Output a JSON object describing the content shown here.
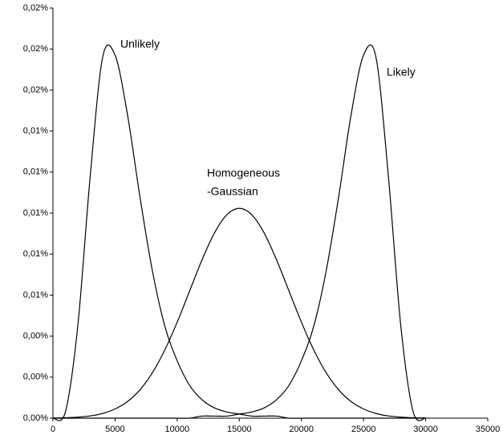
{
  "chart_data": {
    "type": "line",
    "x": [
      0,
      1000,
      2000,
      3000,
      4000,
      5000,
      6000,
      7000,
      8000,
      9000,
      10000,
      11000,
      12000,
      13000,
      14000,
      15000,
      16000,
      17000,
      18000,
      19000,
      20000,
      21000,
      22000,
      23000,
      24000,
      25000,
      26000,
      27000,
      28000,
      29000,
      30000
    ],
    "series": [
      {
        "color": "#000000",
        "values": [
          0,
          0.0003,
          0.0045,
          0.0118,
          0.0176,
          0.0177,
          0.0148,
          0.0108,
          0.0072,
          0.0045,
          0.0028,
          0.0016,
          0.0009,
          0.0005,
          0.0003,
          0.0002,
          0.0001,
          0.0001,
          0.0001,
          0,
          0,
          0,
          0,
          0,
          0,
          0,
          0,
          0,
          0,
          0,
          0
        ]
      },
      {
        "color": "#000000",
        "values": [
          0,
          0,
          0,
          0,
          0,
          0,
          0,
          0,
          0,
          0,
          0,
          0,
          0.0001,
          0.0001,
          0.0001,
          0.0002,
          0.0003,
          0.0005,
          0.0009,
          0.0016,
          0.0028,
          0.0045,
          0.0072,
          0.0108,
          0.0148,
          0.0177,
          0.0176,
          0.0118,
          0.0045,
          0.0003,
          0
        ]
      },
      {
        "color": "#000000",
        "values": [
          1e-05,
          2e-05,
          5e-05,
          0.00011,
          0.00023,
          0.00045,
          0.00081,
          0.00138,
          0.00221,
          0.00332,
          0.00468,
          0.0062,
          0.00772,
          0.00903,
          0.00992,
          0.01023,
          0.00992,
          0.00903,
          0.00772,
          0.0062,
          0.00468,
          0.00332,
          0.00221,
          0.00138,
          0.00081,
          0.00045,
          0.00023,
          0.00011,
          5e-05,
          2e-05,
          1e-05
        ]
      }
    ],
    "annotations": [
      "Unlikely",
      "Likely",
      "Homogeneous",
      "-Gaussian"
    ],
    "xlim": [
      0,
      35000
    ],
    "xticks": [
      0,
      5000,
      10000,
      15000,
      20000,
      25000,
      30000,
      35000
    ],
    "ylim": [
      0,
      0.02
    ],
    "yticks": [
      {
        "value": 0,
        "label": "0,00%"
      },
      {
        "value": 0.002,
        "label": "0,00%"
      },
      {
        "value": 0.004,
        "label": "0,00%"
      },
      {
        "value": 0.006,
        "label": "0,01%"
      },
      {
        "value": 0.008,
        "label": "0,01%"
      },
      {
        "value": 0.01,
        "label": "0,01%"
      },
      {
        "value": 0.012,
        "label": "0,01%"
      },
      {
        "value": 0.014,
        "label": "0,01%"
      },
      {
        "value": 0.016,
        "label": "0,02%"
      },
      {
        "value": 0.018,
        "label": "0,02%"
      },
      {
        "value": 0.02,
        "label": "0,02%"
      }
    ],
    "grid": false
  }
}
